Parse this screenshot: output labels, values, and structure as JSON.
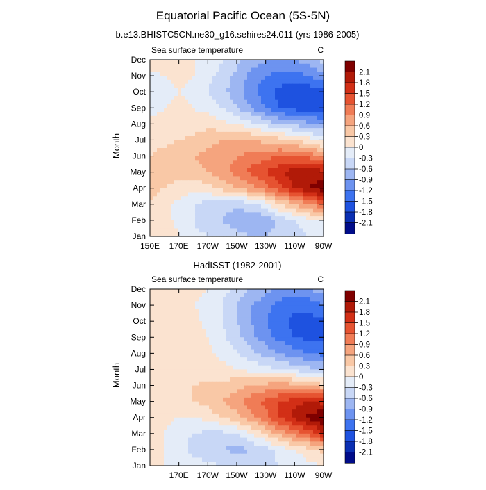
{
  "figure": {
    "title": "Equatorial Pacific Ocean (5S-5N)"
  },
  "chart_data": [
    {
      "type": "heatmap",
      "title": "b.e13.BHISTC5CN.ne30_g16.sehires24.011 (yrs 1986-2005)",
      "left_label": "Sea surface temperature",
      "right_label": "C",
      "xlabel": "",
      "ylabel": "Month",
      "x_ticks": [
        "150E",
        "170E",
        "170W",
        "150W",
        "130W",
        "110W",
        "90W"
      ],
      "y_ticks": [
        "Jan",
        "Feb",
        "Mar",
        "Apr",
        "May",
        "Jun",
        "Jul",
        "Aug",
        "Sep",
        "Oct",
        "Nov",
        "Dec"
      ],
      "xlim": [
        150,
        270
      ],
      "x_grid": [
        150,
        160,
        170,
        180,
        190,
        200,
        210,
        220,
        230,
        240,
        250,
        260,
        270
      ],
      "values": [
        [
          0.3,
          0.2,
          0.0,
          -0.2,
          -0.3,
          -0.4,
          -0.5,
          -0.6,
          -0.6,
          -0.5,
          -0.4,
          -0.3,
          -0.3
        ],
        [
          0.3,
          0.1,
          -0.1,
          -0.3,
          -0.5,
          -0.6,
          -0.8,
          -0.9,
          -0.8,
          -0.5,
          -0.3,
          -0.1,
          0.0
        ],
        [
          0.3,
          0.1,
          -0.1,
          -0.3,
          -0.4,
          -0.5,
          -0.5,
          -0.4,
          -0.1,
          0.3,
          0.6,
          0.9,
          1.2
        ],
        [
          0.4,
          0.3,
          0.2,
          0.1,
          0.2,
          0.4,
          0.6,
          0.8,
          1.1,
          1.4,
          1.8,
          2.1,
          2.3
        ],
        [
          0.4,
          0.4,
          0.4,
          0.5,
          0.6,
          0.8,
          1.0,
          1.3,
          1.5,
          1.7,
          2.0,
          2.0,
          1.9
        ],
        [
          0.3,
          0.4,
          0.5,
          0.6,
          0.7,
          0.8,
          0.9,
          1.0,
          1.1,
          1.2,
          1.2,
          1.1,
          0.9
        ],
        [
          0.2,
          0.2,
          0.3,
          0.4,
          0.5,
          0.6,
          0.6,
          0.6,
          0.5,
          0.4,
          0.3,
          0.1,
          -0.1
        ],
        [
          0.1,
          0.1,
          0.1,
          0.1,
          0.2,
          0.1,
          0.0,
          -0.2,
          -0.4,
          -0.6,
          -0.7,
          -0.8,
          -0.9
        ],
        [
          -0.1,
          0.0,
          0.1,
          0.0,
          -0.1,
          -0.3,
          -0.6,
          -0.9,
          -1.2,
          -1.5,
          -1.6,
          -1.7,
          -1.8
        ],
        [
          -0.2,
          -0.1,
          0.0,
          -0.1,
          -0.3,
          -0.5,
          -0.8,
          -1.1,
          -1.4,
          -1.6,
          -1.7,
          -1.7,
          -1.6
        ],
        [
          -0.1,
          0.0,
          0.1,
          0.0,
          -0.2,
          -0.4,
          -0.7,
          -1.0,
          -1.2,
          -1.3,
          -1.3,
          -1.2,
          -1.0
        ],
        [
          0.2,
          0.2,
          0.1,
          0.0,
          -0.1,
          -0.3,
          -0.5,
          -0.7,
          -0.9,
          -1.0,
          -0.9,
          -0.7,
          -0.5
        ]
      ]
    },
    {
      "type": "heatmap",
      "title": "HadISST (1982-2001)",
      "left_label": "Sea surface temperature",
      "right_label": "C",
      "xlabel": "",
      "ylabel": "Month",
      "x_ticks": [
        "170E",
        "170W",
        "150W",
        "130W",
        "110W",
        "90W"
      ],
      "y_ticks": [
        "Jan",
        "Feb",
        "Mar",
        "Apr",
        "May",
        "Jun",
        "Jul",
        "Aug",
        "Sep",
        "Oct",
        "Nov",
        "Dec"
      ],
      "xlim": [
        150,
        270
      ],
      "x_grid": [
        150,
        160,
        170,
        180,
        190,
        200,
        210,
        220,
        230,
        240,
        250,
        260,
        270
      ],
      "values": [
        [
          0.1,
          0.0,
          -0.1,
          -0.2,
          -0.2,
          -0.3,
          -0.3,
          -0.4,
          -0.4,
          -0.3,
          -0.2,
          -0.1,
          0.0
        ],
        [
          0.1,
          0.0,
          -0.2,
          -0.4,
          -0.5,
          -0.6,
          -0.7,
          -0.6,
          -0.4,
          -0.2,
          0.0,
          0.2,
          0.4
        ],
        [
          0.2,
          0.0,
          -0.2,
          -0.3,
          -0.4,
          -0.4,
          -0.3,
          0.0,
          0.3,
          0.7,
          1.0,
          1.3,
          1.8
        ],
        [
          0.2,
          0.1,
          0.0,
          0.0,
          0.1,
          0.3,
          0.5,
          0.8,
          1.1,
          1.5,
          1.9,
          2.2,
          2.4
        ],
        [
          0.3,
          0.2,
          0.2,
          0.3,
          0.4,
          0.6,
          0.8,
          1.1,
          1.3,
          1.5,
          1.7,
          1.8,
          1.7
        ],
        [
          0.2,
          0.2,
          0.2,
          0.3,
          0.4,
          0.4,
          0.5,
          0.6,
          0.7,
          0.8,
          0.7,
          0.6,
          0.4
        ],
        [
          0.2,
          0.1,
          0.1,
          0.1,
          0.1,
          0.1,
          0.0,
          -0.1,
          -0.2,
          -0.3,
          -0.4,
          -0.5,
          -0.6
        ],
        [
          0.2,
          0.1,
          0.1,
          0.1,
          0.1,
          -0.1,
          -0.3,
          -0.5,
          -0.7,
          -0.9,
          -1.1,
          -1.2,
          -1.3
        ],
        [
          0.1,
          0.1,
          0.2,
          0.2,
          0.0,
          -0.2,
          -0.5,
          -0.8,
          -1.1,
          -1.3,
          -1.5,
          -1.6,
          -1.6
        ],
        [
          0.1,
          0.1,
          0.1,
          0.1,
          -0.1,
          -0.3,
          -0.6,
          -0.9,
          -1.2,
          -1.4,
          -1.6,
          -1.6,
          -1.6
        ],
        [
          0.1,
          0.1,
          0.1,
          0.0,
          -0.1,
          -0.3,
          -0.6,
          -0.9,
          -1.1,
          -1.3,
          -1.4,
          -1.4,
          -1.2
        ],
        [
          0.2,
          0.2,
          0.1,
          0.1,
          0.0,
          -0.2,
          -0.4,
          -0.6,
          -0.8,
          -1.0,
          -1.0,
          -0.9,
          -0.7
        ]
      ]
    }
  ],
  "colorbar": {
    "labels": [
      "2.1",
      "1.8",
      "1.5",
      "1.2",
      "0.9",
      "0.6",
      "0.3",
      "0",
      "-0.3",
      "-0.6",
      "-0.9",
      "-1.2",
      "-1.5",
      "-1.8",
      "-2.1"
    ],
    "levels": [
      -2.1,
      -1.8,
      -1.5,
      -1.2,
      -0.9,
      -0.6,
      -0.3,
      0,
      0.3,
      0.6,
      0.9,
      1.2,
      1.5,
      1.8,
      2.1
    ],
    "colors": [
      "#000c8a",
      "#0a2fb3",
      "#1e52e0",
      "#3d73f0",
      "#6d93f0",
      "#9db6f2",
      "#c8d7f6",
      "#e4ecf8",
      "#fbe3d0",
      "#f9c8a6",
      "#f5a47e",
      "#f07c56",
      "#e65331",
      "#d22f16",
      "#b11a08",
      "#7f0000"
    ]
  }
}
